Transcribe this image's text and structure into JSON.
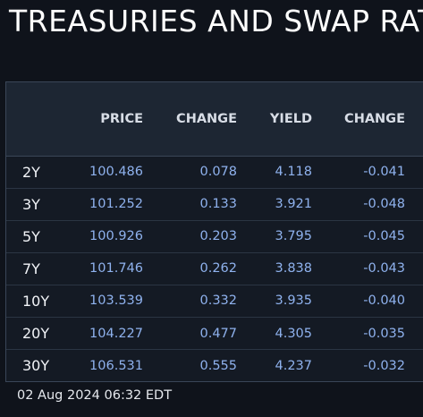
{
  "header": {
    "title": "TREASURIES AND SWAP RAT"
  },
  "table": {
    "columns": [
      "",
      "PRICE",
      "CHANGE",
      "YIELD",
      "CHANGE"
    ],
    "rows": [
      {
        "tenor": "2Y",
        "price": "100.486",
        "price_change": "0.078",
        "yield": "4.118",
        "yield_change": "-0.041"
      },
      {
        "tenor": "3Y",
        "price": "101.252",
        "price_change": "0.133",
        "yield": "3.921",
        "yield_change": "-0.048"
      },
      {
        "tenor": "5Y",
        "price": "100.926",
        "price_change": "0.203",
        "yield": "3.795",
        "yield_change": "-0.045"
      },
      {
        "tenor": "7Y",
        "price": "101.746",
        "price_change": "0.262",
        "yield": "3.838",
        "yield_change": "-0.043"
      },
      {
        "tenor": "10Y",
        "price": "103.539",
        "price_change": "0.332",
        "yield": "3.935",
        "yield_change": "-0.040"
      },
      {
        "tenor": "20Y",
        "price": "104.227",
        "price_change": "0.477",
        "yield": "4.305",
        "yield_change": "-0.035"
      },
      {
        "tenor": "30Y",
        "price": "106.531",
        "price_change": "0.555",
        "yield": "4.237",
        "yield_change": "-0.032"
      }
    ]
  },
  "footer": {
    "timestamp": "02 Aug 2024 06:32 EDT"
  },
  "colors": {
    "background": "#0f131b",
    "header_row": "#1d2633",
    "value_text": "#8fb2ee",
    "tenor_text": "#f2f4f8"
  }
}
